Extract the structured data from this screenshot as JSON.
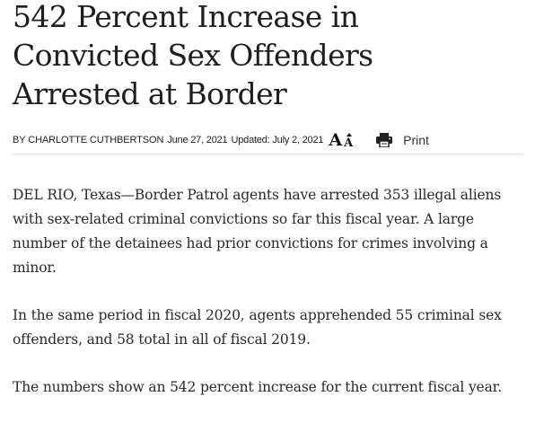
{
  "article": {
    "headline_lines": [
      "542 Percent Increase in",
      "Convicted Sex Offenders",
      "Arrested at Border"
    ],
    "author": "BY CHARLOTTE CUTHBERTSON",
    "date": "June 27, 2021",
    "updated": "Updated: July 2, 2021",
    "font_size_big": "A",
    "font_size_small": "A",
    "print_label": "Print",
    "paragraphs": [
      "DEL RIO, Texas—Border Patrol agents have arrested 353 illegal aliens with sex-related criminal convictions so far this fiscal year. A large number of the detainees had prior convictions for crimes involving a minor.",
      "In the same period in fiscal 2020, agents apprehended 55 criminal sex offenders, and 58 total in all of fiscal 2019.",
      "The numbers show an 542 percent increase for the current fiscal year."
    ]
  },
  "icons": {
    "print": "printer-icon",
    "font_size": "font-size-icon"
  }
}
